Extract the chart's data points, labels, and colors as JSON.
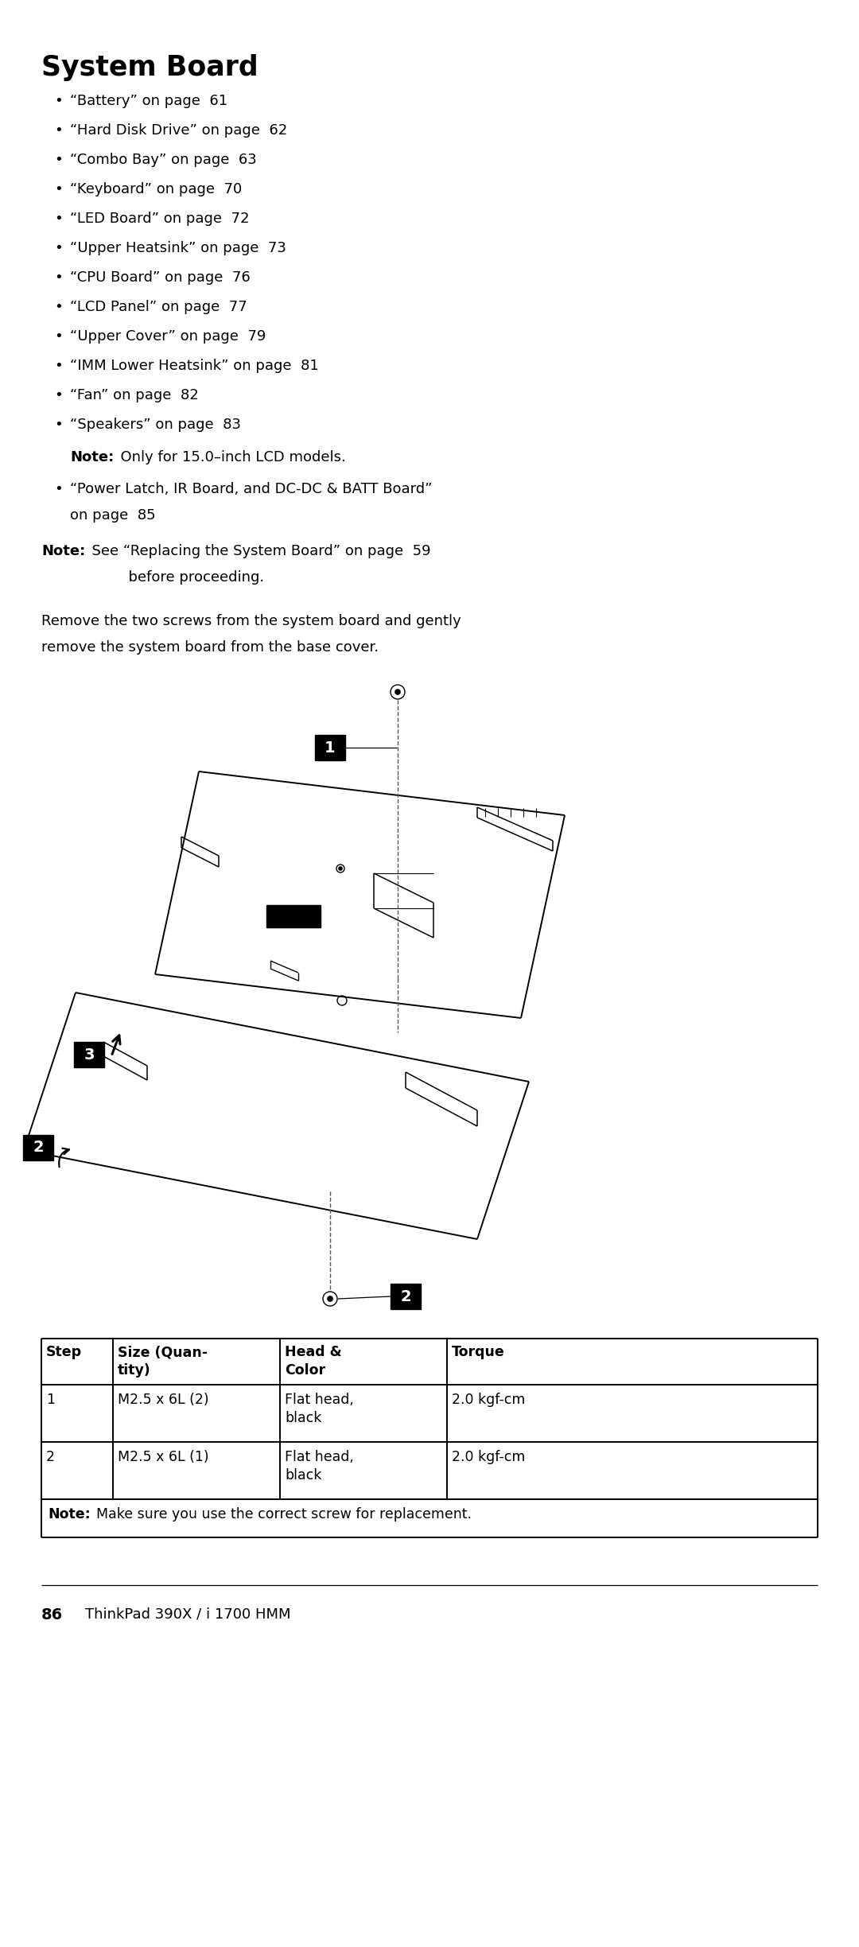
{
  "title": "System Board",
  "bullets": [
    "“Battery” on page  61",
    "“Hard Disk Drive” on page  62",
    "“Combo Bay” on page  63",
    "“Keyboard” on page  70",
    "“LED Board” on page  72",
    "“Upper Heatsink” on page  73",
    "“CPU Board” on page  76",
    "“LCD Panel” on page  77",
    "“Upper Cover” on page  79",
    "“IMM Lower Heatsink” on page  81",
    "“Fan” on page  82",
    "“Speakers” on page  83"
  ],
  "note_lcd": "Only for 15.0–inch LCD models.",
  "bullet_extra_line1": "“Power Latch, IR Board, and DC-DC & BATT Board”",
  "bullet_extra_line2": "on page  85",
  "note_main_line1": "See “Replacing the System Board” on page  59",
  "note_main_line2": "        before proceeding.",
  "body_line1": "Remove the two screws from the system board and gently",
  "body_line2": "remove the system board from the base cover.",
  "table_headers": [
    "Step",
    "Size (Quan-\ntity)",
    "Head &\nColor",
    "Torque"
  ],
  "table_rows": [
    [
      "1",
      "M2.5 x 6L (2)",
      "Flat head,\nblack",
      "2.0 kgf-cm"
    ],
    [
      "2",
      "M2.5 x 6L (1)",
      "Flat head,\nblack",
      "2.0 kgf-cm"
    ]
  ],
  "table_note": "Make sure you use the correct screw for replacement.",
  "footer_bold": "86",
  "footer_normal": "    ThinkPad 390X / i 1700 HMM",
  "bg_color": "#ffffff",
  "text_color": "#000000"
}
